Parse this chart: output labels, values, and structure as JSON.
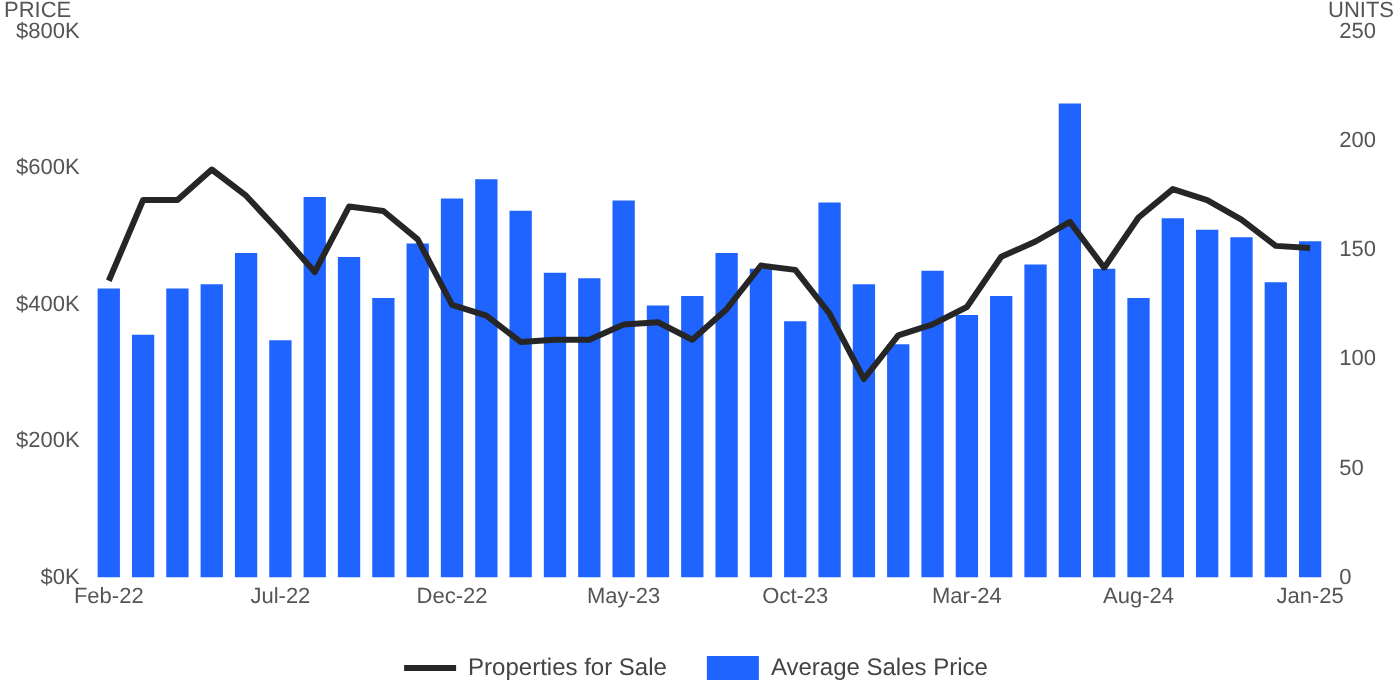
{
  "chart_data": {
    "type": "bar",
    "ylabel": "PRICE",
    "y2label": "UNITS",
    "categories": [
      "Feb-22",
      null,
      null,
      null,
      null,
      "Jul-22",
      null,
      null,
      null,
      null,
      "Dec-22",
      null,
      null,
      null,
      null,
      "May-23",
      null,
      null,
      null,
      null,
      "Oct-23",
      null,
      null,
      null,
      null,
      "Mar-24",
      null,
      null,
      null,
      null,
      "Aug-24",
      null,
      null,
      null,
      null,
      "Jan-25"
    ],
    "series": [
      {
        "name": "Properties for Sale",
        "type": "line",
        "axis": "y2",
        "color": "#262626",
        "values": [
          136,
          173,
          173,
          187,
          175,
          158,
          140,
          170,
          168,
          155,
          125,
          120,
          108,
          109,
          109,
          116,
          117,
          109,
          123,
          143,
          141,
          121,
          91,
          111,
          116,
          124,
          147,
          154,
          163,
          142,
          165,
          178,
          173,
          164,
          152,
          151
        ]
      },
      {
        "name": "Average Sales Price",
        "color": "#1f64ff",
        "values": [
          424000,
          356000,
          424000,
          430000,
          476000,
          348000,
          558000,
          470000,
          410000,
          490000,
          556000,
          584000,
          538000,
          447000,
          439000,
          553000,
          399000,
          413000,
          476000,
          453000,
          376000,
          550000,
          430000,
          342000,
          450000,
          385000,
          413000,
          459000,
          695000,
          453000,
          410000,
          527000,
          510000,
          499000,
          433000,
          493000
        ]
      }
    ],
    "ylim": [
      0,
      800000
    ],
    "yticks": [
      {
        "value": 0,
        "label": "$0K"
      },
      {
        "value": 200000,
        "label": "$200K"
      },
      {
        "value": 400000,
        "label": "$400K"
      },
      {
        "value": 600000,
        "label": "$600K"
      },
      {
        "value": 800000,
        "label": "$800K"
      }
    ],
    "y2lim": [
      0,
      250
    ],
    "y2ticks": [
      0,
      50,
      100,
      150,
      200,
      250
    ],
    "grid": false,
    "legend": "bottom",
    "marker": "none",
    "line_style": "solid"
  }
}
